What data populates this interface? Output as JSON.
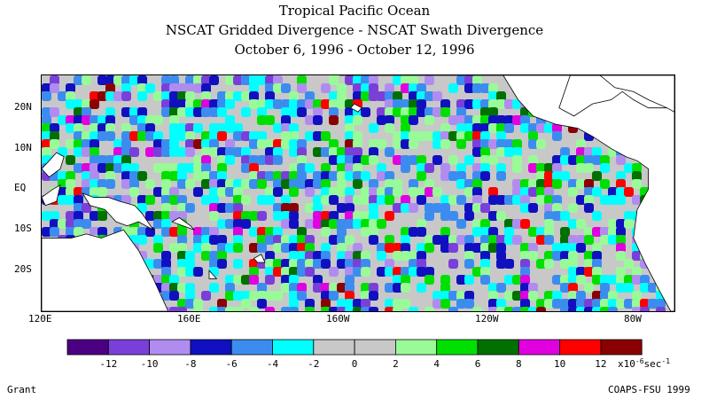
{
  "header": {
    "title": "Tropical Pacific Ocean",
    "subtitle": "NSCAT Gridded Divergence - NSCAT Swath Divergence",
    "dates": "October 6, 1996 - October 12, 1996"
  },
  "map": {
    "lat_labels": [
      "20N",
      "10N",
      "EQ",
      "10S",
      "20S"
    ],
    "lat_values": [
      20,
      10,
      0,
      -10,
      -20
    ],
    "lon_labels": [
      "120E",
      "160E",
      "160W",
      "120W",
      "80W"
    ],
    "lon_values": [
      120,
      160,
      200,
      240,
      280
    ],
    "lon_range": [
      120,
      290
    ],
    "lat_range": [
      -30,
      28
    ],
    "land_color": "#ffffff"
  },
  "colorbar": {
    "colors": [
      "#4b0082",
      "#7b3fd9",
      "#b18cf0",
      "#1010c0",
      "#3c8cf0",
      "#00ffff",
      "#c8c8c8",
      "#c8c8c8",
      "#98fb98",
      "#00e000",
      "#007000",
      "#e000e0",
      "#ff0000",
      "#8b0000"
    ],
    "tick_labels": [
      "-12",
      "-10",
      "-8",
      "-6",
      "-4",
      "-2",
      "0",
      "2",
      "4",
      "6",
      "8",
      "10",
      "12"
    ],
    "units": "x10",
    "units_exp": "-6",
    "units_tail": "sec",
    "units_tail_exp": "-1"
  },
  "footer": {
    "author": "Grant",
    "credit": "COAPS-FSU 1999"
  }
}
